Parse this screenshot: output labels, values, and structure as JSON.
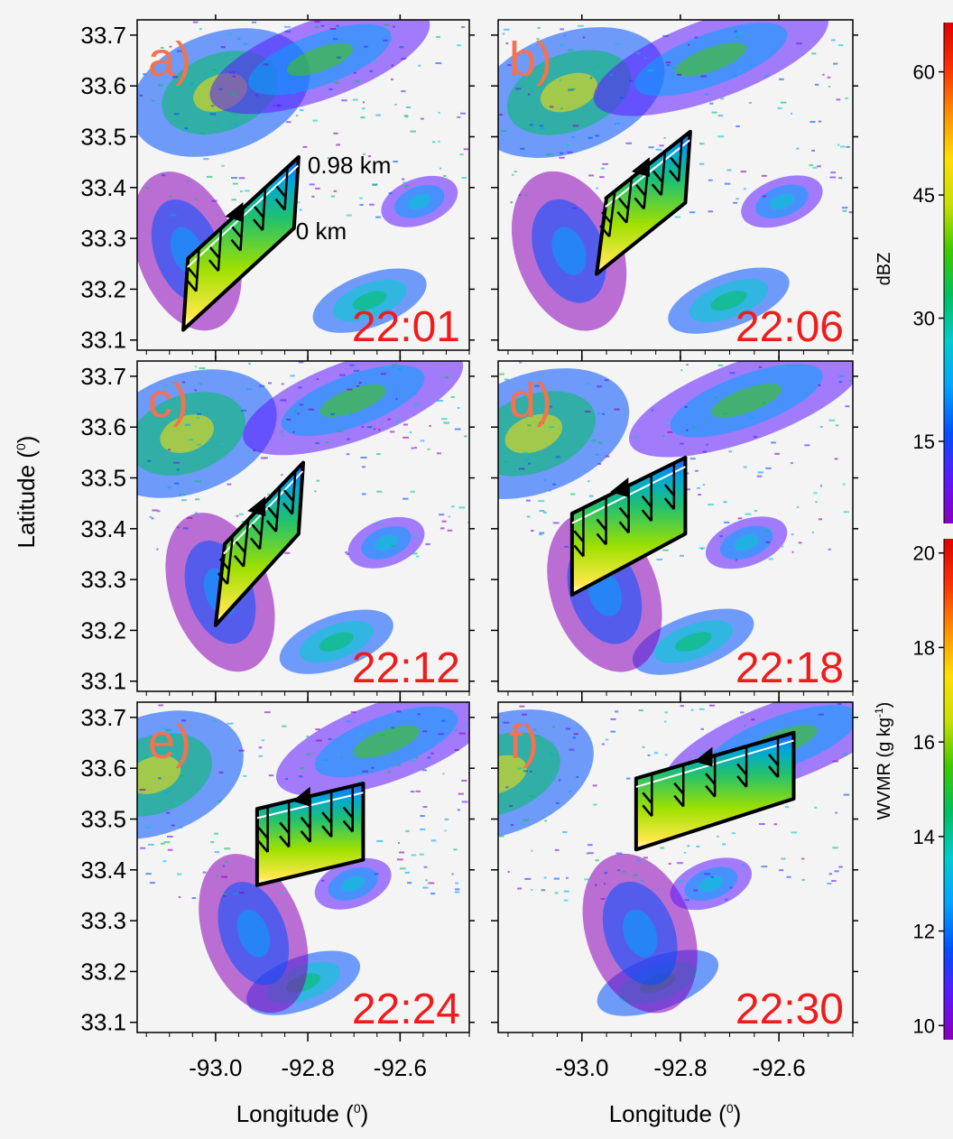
{
  "chart_data": {
    "type": "heatmap",
    "description_units": "Radar reflectivity (dBZ) with embedded water vapor mixing ratio (WVMR) cross-section panels",
    "xlabel": "Longitude (",
    "xlabel_sup": "0",
    "xlabel_close": ")",
    "ylabel": "Latitude (",
    "ylabel_sup": "0",
    "ylabel_close": ")",
    "xlim": [
      -93.17,
      -92.45
    ],
    "ylim": [
      33.08,
      33.73
    ],
    "xticks": [
      -93.0,
      -92.8,
      -92.6
    ],
    "xtick_labels": [
      "-93.0",
      "-92.8",
      "-92.6"
    ],
    "yticks": [
      33.1,
      33.2,
      33.3,
      33.4,
      33.5,
      33.6,
      33.7
    ],
    "ytick_labels": [
      "33.1",
      "33.2",
      "33.3",
      "33.4",
      "33.5",
      "33.6",
      "33.7"
    ],
    "panels": [
      {
        "label": "a)",
        "time": "22:01",
        "annot_top": "0.98 km",
        "annot_bottom": "0 km",
        "section": {
          "bottom_start": [
            -93.07,
            33.12
          ],
          "bottom_end": [
            -92.83,
            33.32
          ],
          "top_start": [
            -93.06,
            33.26
          ],
          "top_end": [
            -92.82,
            33.46
          ]
        }
      },
      {
        "label": "b)",
        "time": "22:06",
        "section": {
          "bottom_start": [
            -92.97,
            33.23
          ],
          "bottom_end": [
            -92.79,
            33.37
          ],
          "top_start": [
            -92.95,
            33.38
          ],
          "top_end": [
            -92.78,
            33.51
          ]
        }
      },
      {
        "label": "c)",
        "time": "22:12",
        "section": {
          "bottom_start": [
            -93.0,
            33.21
          ],
          "bottom_end": [
            -92.82,
            33.39
          ],
          "top_start": [
            -92.98,
            33.37
          ],
          "top_end": [
            -92.81,
            33.53
          ]
        }
      },
      {
        "label": "d)",
        "time": "22:18",
        "section": {
          "bottom_start": [
            -93.02,
            33.27
          ],
          "bottom_end": [
            -92.79,
            33.39
          ],
          "top_start": [
            -93.02,
            33.43
          ],
          "top_end": [
            -92.79,
            33.54
          ]
        }
      },
      {
        "label": "e)",
        "time": "22:24",
        "section": {
          "bottom_start": [
            -92.91,
            33.37
          ],
          "bottom_end": [
            -92.68,
            33.42
          ],
          "top_start": [
            -92.91,
            33.52
          ],
          "top_end": [
            -92.68,
            33.57
          ]
        }
      },
      {
        "label": "f)",
        "time": "22:30",
        "section": {
          "bottom_start": [
            -92.89,
            33.44
          ],
          "bottom_end": [
            -92.57,
            33.54
          ],
          "top_start": [
            -92.89,
            33.58
          ],
          "top_end": [
            -92.57,
            33.67
          ]
        }
      }
    ],
    "colorbars": [
      {
        "label": "dBZ",
        "ticks": [
          15,
          30,
          45,
          60
        ],
        "range": [
          5,
          66
        ]
      },
      {
        "label": "WVMR (g kg",
        "label_sup": "-1",
        "label_close": ")",
        "ticks": [
          10,
          12,
          14,
          16,
          18,
          20
        ],
        "range": [
          9.7,
          20.3
        ]
      }
    ],
    "colors": {
      "panel_letter": "#f4724e",
      "time_stamp": "#ee1c1c",
      "ramp": [
        "#8a00b8",
        "#5c18ff",
        "#0050ff",
        "#00a4ff",
        "#00cccc",
        "#00c060",
        "#40c800",
        "#c8e000",
        "#ffe000",
        "#ff9000",
        "#ff3000",
        "#e00000"
      ]
    }
  }
}
